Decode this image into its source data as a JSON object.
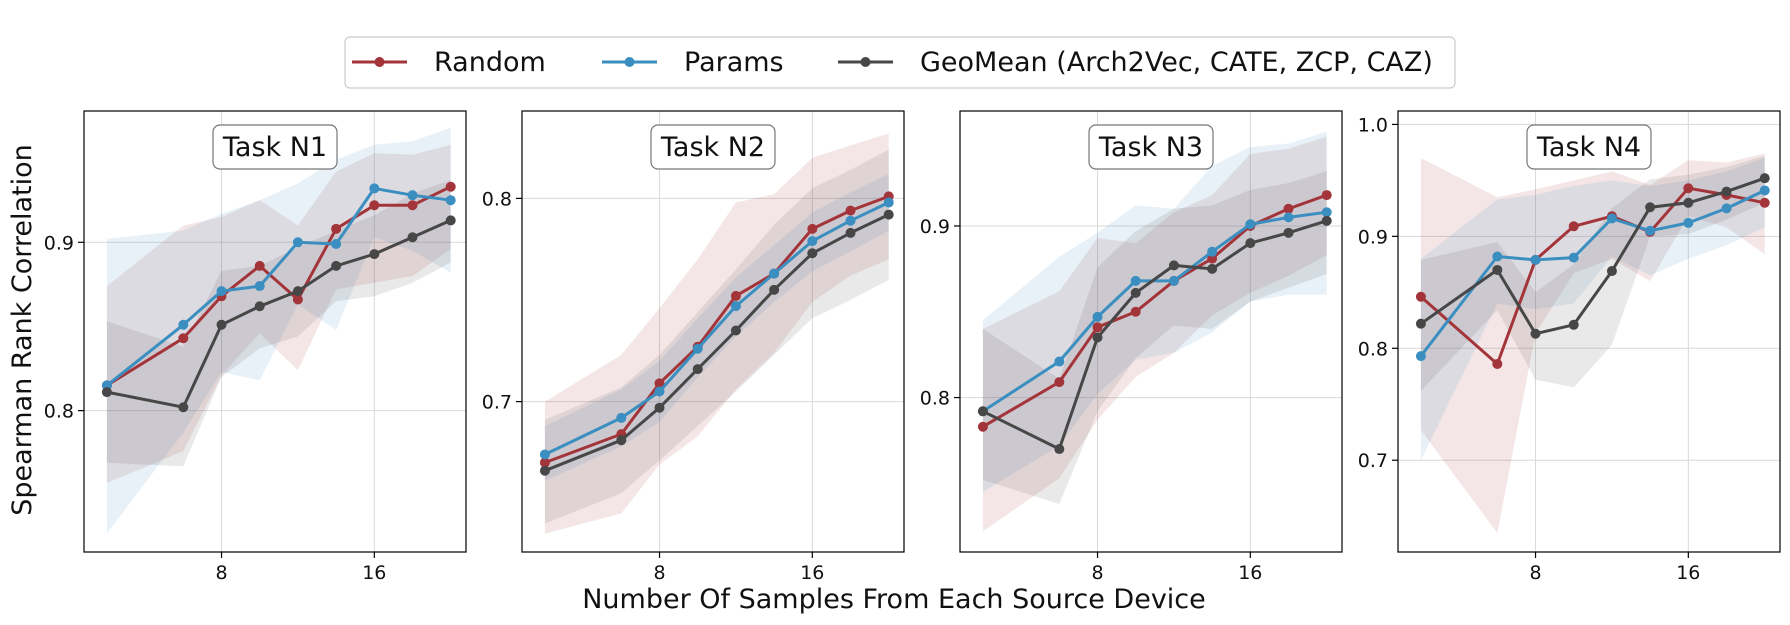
{
  "figure": {
    "ylabel": "Spearman Rank Correlation",
    "xlabel": "Number Of Samples From Each Source Device"
  },
  "legend": {
    "placement": "top-center",
    "entries": [
      {
        "label": "Random",
        "color": "#a3353a"
      },
      {
        "label": "Params",
        "color": "#3a8ec0"
      },
      {
        "label": "GeoMean (Arch2Vec, CATE, ZCP, CAZ)",
        "color": "#474747"
      }
    ]
  },
  "chart_data": [
    {
      "type": "line",
      "title": "Task N1",
      "grid": true,
      "xlim": [
        0.8,
        20.8
      ],
      "ylim": [
        0.716,
        0.978
      ],
      "xticks": [
        8,
        16
      ],
      "yticks": [
        0.8,
        0.9
      ],
      "ytick_labels": [
        "0.8",
        "0.9"
      ],
      "x": [
        2,
        6,
        8,
        10,
        12,
        14,
        16,
        18,
        20
      ],
      "series": [
        {
          "name": "Random",
          "color": "#a3353a",
          "values": [
            0.815,
            0.843,
            0.868,
            0.886,
            0.866,
            0.908,
            0.922,
            0.922,
            0.933
          ],
          "lower": [
            0.757,
            0.776,
            0.821,
            0.846,
            0.824,
            0.872,
            0.876,
            0.88,
            0.896
          ],
          "upper": [
            0.874,
            0.91,
            0.915,
            0.925,
            0.91,
            0.942,
            0.953,
            0.952,
            0.958
          ]
        },
        {
          "name": "Params",
          "color": "#3a8ec0",
          "values": [
            0.815,
            0.851,
            0.871,
            0.874,
            0.9,
            0.899,
            0.932,
            0.928,
            0.925
          ],
          "lower": [
            0.727,
            0.787,
            0.823,
            0.818,
            0.863,
            0.848,
            0.903,
            0.895,
            0.882
          ],
          "upper": [
            0.902,
            0.907,
            0.917,
            0.925,
            0.935,
            0.949,
            0.958,
            0.96,
            0.968
          ]
        },
        {
          "name": "GeoMean (Arch2Vec, CATE, ZCP, CAZ)",
          "color": "#474747",
          "values": [
            0.811,
            0.802,
            0.851,
            0.862,
            0.871,
            0.886,
            0.893,
            0.903,
            0.913
          ],
          "lower": [
            0.769,
            0.767,
            0.82,
            0.837,
            0.844,
            0.865,
            0.868,
            0.876,
            0.888
          ],
          "upper": [
            0.853,
            0.838,
            0.883,
            0.886,
            0.897,
            0.907,
            0.916,
            0.929,
            0.937
          ]
        }
      ]
    },
    {
      "type": "line",
      "title": "Task N2",
      "grid": true,
      "xlim": [
        0.8,
        20.8
      ],
      "ylim": [
        0.626,
        0.843
      ],
      "xticks": [
        8,
        16
      ],
      "yticks": [
        0.7,
        0.8
      ],
      "ytick_labels": [
        "0.7",
        "0.8"
      ],
      "x": [
        2,
        6,
        8,
        10,
        12,
        14,
        16,
        18,
        20
      ],
      "series": [
        {
          "name": "Random",
          "color": "#a3353a",
          "values": [
            0.67,
            0.684,
            0.709,
            0.727,
            0.752,
            0.763,
            0.785,
            0.794,
            0.801
          ],
          "lower": [
            0.635,
            0.645,
            0.669,
            0.683,
            0.706,
            0.724,
            0.749,
            0.762,
            0.77
          ],
          "upper": [
            0.7,
            0.723,
            0.746,
            0.77,
            0.798,
            0.802,
            0.82,
            0.826,
            0.832
          ]
        },
        {
          "name": "Params",
          "color": "#3a8ec0",
          "values": [
            0.674,
            0.692,
            0.705,
            0.726,
            0.747,
            0.763,
            0.779,
            0.789,
            0.798
          ],
          "lower": [
            0.661,
            0.678,
            0.69,
            0.712,
            0.732,
            0.749,
            0.764,
            0.774,
            0.784
          ],
          "upper": [
            0.688,
            0.706,
            0.72,
            0.741,
            0.761,
            0.777,
            0.793,
            0.803,
            0.812
          ]
        },
        {
          "name": "GeoMean (Arch2Vec, CATE, ZCP, CAZ)",
          "color": "#474747",
          "values": [
            0.666,
            0.681,
            0.697,
            0.716,
            0.735,
            0.755,
            0.773,
            0.783,
            0.792
          ],
          "lower": [
            0.64,
            0.655,
            0.671,
            0.688,
            0.705,
            0.723,
            0.741,
            0.75,
            0.76
          ],
          "upper": [
            0.691,
            0.707,
            0.723,
            0.744,
            0.765,
            0.787,
            0.805,
            0.814,
            0.824
          ]
        }
      ]
    },
    {
      "type": "line",
      "title": "Task N3",
      "grid": true,
      "xlim": [
        0.8,
        20.8
      ],
      "ylim": [
        0.71,
        0.967
      ],
      "xticks": [
        8,
        16
      ],
      "yticks": [
        0.8,
        0.9
      ],
      "ytick_labels": [
        "0.8",
        "0.9"
      ],
      "x": [
        2,
        6,
        8,
        10,
        12,
        14,
        16,
        18,
        20
      ],
      "series": [
        {
          "name": "Random",
          "color": "#a3353a",
          "values": [
            0.783,
            0.809,
            0.841,
            0.85,
            0.868,
            0.881,
            0.9,
            0.91,
            0.918
          ],
          "lower": [
            0.722,
            0.753,
            0.787,
            0.812,
            0.826,
            0.848,
            0.861,
            0.871,
            0.883
          ],
          "upper": [
            0.84,
            0.862,
            0.893,
            0.89,
            0.908,
            0.918,
            0.942,
            0.945,
            0.952
          ]
        },
        {
          "name": "Params",
          "color": "#3a8ec0",
          "values": [
            0.792,
            0.821,
            0.847,
            0.868,
            0.868,
            0.885,
            0.901,
            0.905,
            0.908
          ],
          "lower": [
            0.745,
            0.772,
            0.802,
            0.822,
            0.826,
            0.838,
            0.856,
            0.86,
            0.86
          ],
          "upper": [
            0.845,
            0.882,
            0.896,
            0.912,
            0.91,
            0.935,
            0.946,
            0.948,
            0.955
          ]
        },
        {
          "name": "GeoMean (Arch2Vec, CATE, ZCP, CAZ)",
          "color": "#474747",
          "values": [
            0.792,
            0.77,
            0.835,
            0.861,
            0.877,
            0.875,
            0.89,
            0.896,
            0.903
          ],
          "lower": [
            0.752,
            0.738,
            0.792,
            0.823,
            0.842,
            0.84,
            0.856,
            0.864,
            0.872
          ],
          "upper": [
            0.84,
            0.811,
            0.876,
            0.897,
            0.91,
            0.912,
            0.921,
            0.925,
            0.932
          ]
        }
      ]
    },
    {
      "type": "line",
      "title": "Task N4",
      "grid": true,
      "xlim": [
        0.8,
        20.8
      ],
      "ylim": [
        0.618,
        1.012
      ],
      "xticks": [
        8,
        16
      ],
      "yticks": [
        0.7,
        0.8,
        0.9,
        1.0
      ],
      "ytick_labels": [
        "0.7",
        "0.8",
        "0.9",
        "1.0"
      ],
      "x": [
        2,
        6,
        8,
        10,
        12,
        14,
        16,
        18,
        20
      ],
      "series": [
        {
          "name": "Random",
          "color": "#a3353a",
          "values": [
            0.846,
            0.786,
            0.879,
            0.909,
            0.918,
            0.904,
            0.943,
            0.937,
            0.93
          ],
          "lower": [
            0.727,
            0.635,
            0.813,
            0.867,
            0.88,
            0.86,
            0.918,
            0.908,
            0.884
          ],
          "upper": [
            0.97,
            0.935,
            0.942,
            0.95,
            0.958,
            0.946,
            0.968,
            0.966,
            0.974
          ]
        },
        {
          "name": "Params",
          "color": "#3a8ec0",
          "values": [
            0.793,
            0.882,
            0.879,
            0.881,
            0.916,
            0.905,
            0.912,
            0.925,
            0.941
          ],
          "lower": [
            0.7,
            0.84,
            0.835,
            0.84,
            0.882,
            0.865,
            0.88,
            0.892,
            0.908
          ],
          "upper": [
            0.88,
            0.933,
            0.937,
            0.945,
            0.95,
            0.945,
            0.95,
            0.958,
            0.97
          ]
        },
        {
          "name": "GeoMean (Arch2Vec, CATE, ZCP, CAZ)",
          "color": "#474747",
          "values": [
            0.822,
            0.87,
            0.813,
            0.821,
            0.869,
            0.926,
            0.93,
            0.94,
            0.952
          ],
          "lower": [
            0.762,
            0.834,
            0.772,
            0.765,
            0.803,
            0.9,
            0.902,
            0.915,
            0.93
          ],
          "upper": [
            0.879,
            0.895,
            0.85,
            0.875,
            0.925,
            0.951,
            0.955,
            0.962,
            0.972
          ]
        }
      ]
    }
  ]
}
